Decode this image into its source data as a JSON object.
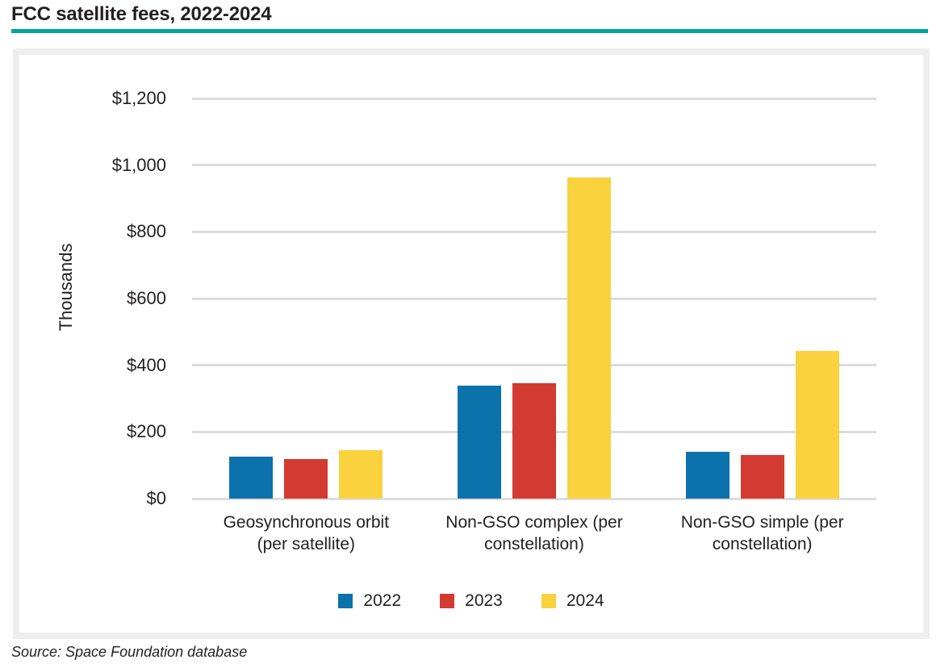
{
  "title": "FCC satellite fees, 2022-2024",
  "source_note": "Source: Space Foundation database",
  "colors": {
    "accent_teal": "#00A39E",
    "text": "#231F20",
    "gridline": "#DCDCDC",
    "panel_border": "#EEEEEE",
    "series_2022_blue": "#0B72AC",
    "series_2023_red": "#D33A32",
    "series_2024_yellow": "#F9D23E"
  },
  "chart_data": {
    "type": "bar",
    "title": "FCC satellite fees, 2022-2024",
    "ylabel": "Thousands",
    "ylim": [
      0,
      1200
    ],
    "yticks": [
      0,
      200,
      400,
      600,
      800,
      1000,
      1200
    ],
    "ytick_labels": [
      "$0",
      "$200",
      "$400",
      "$600",
      "$800",
      "$1,000",
      "$1,200"
    ],
    "grid": true,
    "legend_position": "bottom-center",
    "categories": [
      "Geosynchronous orbit (per satellite)",
      "Non-GSO complex (per constellation)",
      "Non-GSO simple (per constellation)"
    ],
    "category_lines": [
      [
        "Geosynchronous orbit",
        "(per satellite)"
      ],
      [
        "Non-GSO complex (per",
        "constellation)"
      ],
      [
        "Non-GSO simple (per",
        "constellation)"
      ]
    ],
    "series": [
      {
        "name": "2022",
        "color": "#0B72AC",
        "values": [
          126,
          339,
          140
        ]
      },
      {
        "name": "2023",
        "color": "#D33A32",
        "values": [
          119,
          347,
          130
        ]
      },
      {
        "name": "2024",
        "color": "#F9D23E",
        "values": [
          144,
          962,
          443
        ]
      }
    ]
  }
}
